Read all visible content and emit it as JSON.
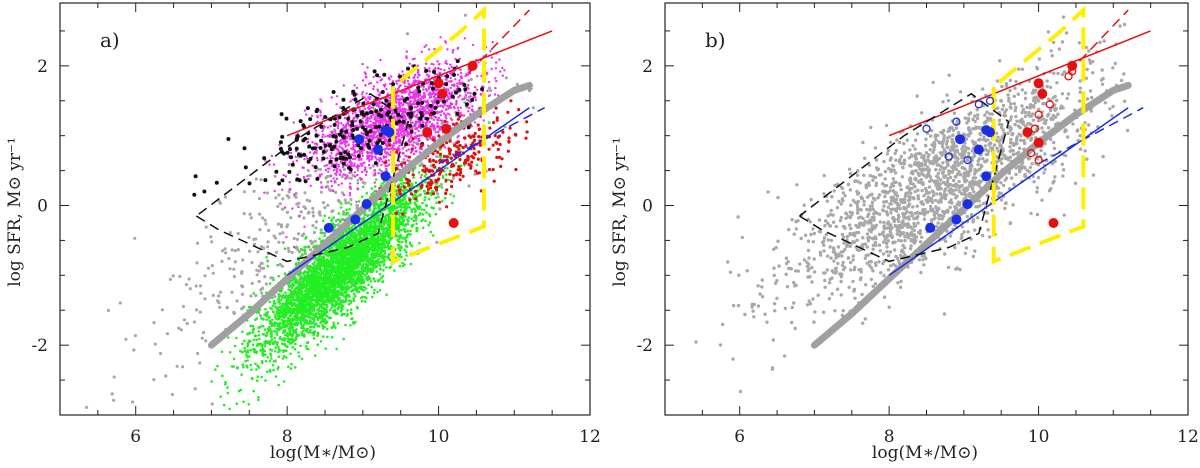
{
  "chart_data": [
    {
      "type": "scatter",
      "panel_label": "a)",
      "xlabel": "log(M∗/M⊙)",
      "ylabel": "log SFR, M⊙ yr⁻¹",
      "xlim": [
        5,
        12
      ],
      "ylim": [
        -3,
        2.9
      ],
      "x_ticks": [
        6,
        8,
        10,
        12
      ],
      "y_ticks": [
        -2,
        0,
        2
      ],
      "grid": false,
      "colors": {
        "gray": "#a8a8a8",
        "green": "#22ee22",
        "magenta": "#ee33ee",
        "black": "#111111",
        "red_small": "#e01010",
        "blue": "#1a2ee6",
        "red": "#e61010",
        "yellow": "#ffee00"
      },
      "clouds": [
        {
          "name": "gray",
          "n": 450,
          "center": [
            8.3,
            -0.3
          ],
          "slope": 0.78,
          "sx": 1.1,
          "sy": 0.6,
          "size": 1.6,
          "xmin": 5.1,
          "xmax": 11.3
        },
        {
          "name": "green",
          "n": 4200,
          "center": [
            8.7,
            -0.9
          ],
          "slope": 0.95,
          "sx": 0.55,
          "sy": 0.32,
          "size": 1.3,
          "xmin": 7.0,
          "xmax": 11.3
        },
        {
          "name": "magenta",
          "n": 2200,
          "center": [
            9.4,
            1.2
          ],
          "slope": 0.45,
          "sx": 0.55,
          "sy": 0.33,
          "size": 1.2,
          "xmin": 7.3,
          "xmax": 11.0
        },
        {
          "name": "black",
          "n": 220,
          "center": [
            8.9,
            1.1
          ],
          "slope": 0.35,
          "sx": 0.75,
          "sy": 0.3,
          "size": 2.0,
          "xmin": 6.7,
          "xmax": 10.8
        },
        {
          "name": "red_small",
          "n": 260,
          "center": [
            10.2,
            0.7
          ],
          "slope": 0.45,
          "sx": 0.45,
          "sy": 0.25,
          "size": 1.6,
          "xmin": 9.2,
          "xmax": 11.2
        }
      ],
      "main_sequence_curve": {
        "color": "#a0a0a0",
        "x": [
          7.0,
          7.5,
          8.0,
          8.5,
          9.0,
          9.5,
          10.0,
          10.5,
          11.0,
          11.2
        ],
        "y": [
          -2.0,
          -1.55,
          -1.05,
          -0.55,
          -0.05,
          0.45,
          0.9,
          1.3,
          1.65,
          1.72
        ]
      },
      "blue_points": {
        "x": [
          8.55,
          8.9,
          9.05,
          9.3,
          8.95,
          9.2,
          9.35,
          9.3
        ],
        "y": [
          -0.32,
          -0.2,
          0.02,
          0.42,
          0.95,
          0.8,
          1.05,
          1.08
        ]
      },
      "red_points": {
        "x": [
          9.85,
          10.0,
          10.05,
          10.45,
          10.2,
          10.1
        ],
        "y": [
          1.05,
          1.75,
          1.6,
          2.0,
          -0.25,
          1.1
        ]
      },
      "lines": [
        {
          "color": "#e61010",
          "dash": false,
          "x": [
            8.0,
            11.5
          ],
          "y": [
            1.0,
            2.5
          ]
        },
        {
          "color": "#e61010",
          "dash": true,
          "x": [
            10.4,
            11.2
          ],
          "y": [
            1.9,
            2.8
          ]
        },
        {
          "color": "#1a2ee6",
          "dash": false,
          "x": [
            8.0,
            11.2
          ],
          "y": [
            -1.0,
            1.4
          ]
        },
        {
          "color": "#1a2ee6",
          "dash": true,
          "x": [
            10.0,
            11.4
          ],
          "y": [
            0.6,
            1.4
          ]
        },
        {
          "color": "#111111",
          "dash": true,
          "x": [
            6.8,
            7.1,
            8.0,
            8.8,
            9.2,
            9.6,
            9.1,
            8.2,
            6.8
          ],
          "y": [
            -0.15,
            -0.35,
            -0.8,
            -0.6,
            -0.4,
            1.2,
            1.6,
            1.0,
            -0.15
          ]
        },
        {
          "color": "#ffee00",
          "dash": true,
          "thick": true,
          "x": [
            9.4,
            9.4,
            10.6,
            10.6,
            10.3,
            9.4
          ],
          "y": [
            1.7,
            -0.8,
            -0.3,
            2.8,
            2.5,
            1.7
          ]
        }
      ]
    },
    {
      "type": "scatter",
      "panel_label": "b)",
      "xlabel": "log(M∗/M⊙)",
      "ylabel": "log SFR, M⊙ yr⁻¹",
      "xlim": [
        5,
        12
      ],
      "ylim": [
        -3,
        2.9
      ],
      "x_ticks": [
        6,
        8,
        10,
        12
      ],
      "y_ticks": [
        -2,
        0,
        2
      ],
      "grid": false,
      "colors": {
        "gray": "#a8a8a8",
        "blue": "#1a2ee6",
        "red": "#e61010",
        "yellow": "#ffee00"
      },
      "clouds": [
        {
          "name": "gray",
          "n": 1900,
          "center": [
            8.7,
            0.3
          ],
          "slope": 0.62,
          "sx": 1.0,
          "sy": 0.5,
          "size": 1.7,
          "xmin": 5.1,
          "xmax": 11.2
        }
      ],
      "main_sequence_curve": {
        "color": "#a0a0a0",
        "x": [
          7.0,
          7.5,
          8.0,
          8.5,
          9.0,
          9.5,
          10.0,
          10.5,
          11.0,
          11.2
        ],
        "y": [
          -2.0,
          -1.55,
          -1.05,
          -0.55,
          -0.05,
          0.45,
          0.9,
          1.3,
          1.65,
          1.72
        ]
      },
      "blue_points": {
        "x": [
          8.55,
          8.9,
          9.05,
          9.3,
          8.95,
          9.2,
          9.35,
          9.3
        ],
        "y": [
          -0.32,
          -0.2,
          0.02,
          0.42,
          0.95,
          0.8,
          1.05,
          1.08
        ]
      },
      "blue_open_points": {
        "x": [
          8.5,
          8.9,
          9.2,
          9.35,
          9.05,
          8.8
        ],
        "y": [
          1.1,
          1.2,
          1.45,
          1.5,
          0.65,
          0.7
        ]
      },
      "red_points": {
        "x": [
          9.85,
          10.0,
          10.05,
          10.45,
          10.2,
          10.0
        ],
        "y": [
          1.05,
          1.75,
          1.6,
          2.0,
          -0.25,
          0.9
        ]
      },
      "red_open_points": {
        "x": [
          9.95,
          10.0,
          10.15,
          10.4,
          10.45,
          9.9,
          10.0
        ],
        "y": [
          1.1,
          1.3,
          1.45,
          1.85,
          1.92,
          0.75,
          0.65
        ]
      },
      "lines": [
        {
          "color": "#e61010",
          "dash": false,
          "x": [
            8.0,
            11.5
          ],
          "y": [
            1.0,
            2.5
          ]
        },
        {
          "color": "#e61010",
          "dash": true,
          "x": [
            10.4,
            11.2
          ],
          "y": [
            1.9,
            2.8
          ]
        },
        {
          "color": "#1a2ee6",
          "dash": false,
          "x": [
            8.0,
            11.2
          ],
          "y": [
            -1.0,
            1.4
          ]
        },
        {
          "color": "#1a2ee6",
          "dash": true,
          "x": [
            10.0,
            11.4
          ],
          "y": [
            0.6,
            1.4
          ]
        },
        {
          "color": "#111111",
          "dash": true,
          "x": [
            6.8,
            7.1,
            8.0,
            8.8,
            9.2,
            9.6,
            9.1,
            8.2,
            6.8
          ],
          "y": [
            -0.15,
            -0.35,
            -0.8,
            -0.6,
            -0.4,
            1.2,
            1.6,
            1.0,
            -0.15
          ]
        },
        {
          "color": "#ffee00",
          "dash": true,
          "thick": true,
          "x": [
            9.4,
            9.4,
            10.6,
            10.6,
            10.3,
            9.4
          ],
          "y": [
            1.7,
            -0.8,
            -0.3,
            2.8,
            2.5,
            1.7
          ]
        }
      ]
    }
  ]
}
